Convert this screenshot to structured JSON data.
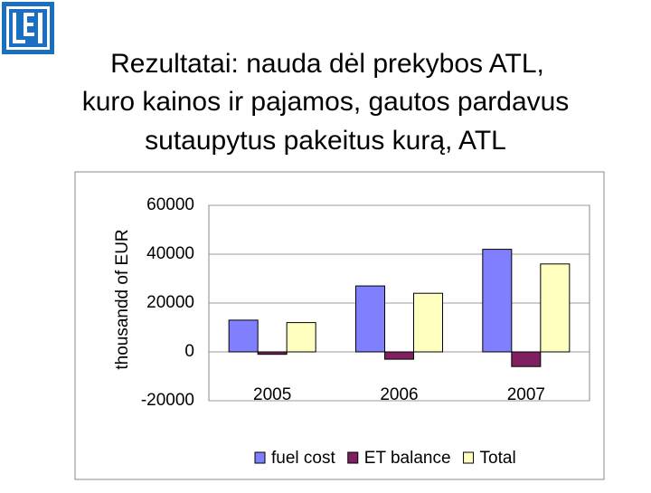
{
  "chart_data": {
    "type": "bar",
    "title": [
      "Rezultatai: nauda dėl prekybos ATL,",
      "kuro kainos ir pajamos, gautos pardavus",
      "sutaupytus pakeitus kurą,  ATL"
    ],
    "y_label": "thousandd of EUR",
    "categories": [
      "2005",
      "2006",
      "2007"
    ],
    "series": [
      {
        "name": "fuel cost",
        "color": "#8080ff",
        "values": [
          13000,
          27000,
          42000
        ]
      },
      {
        "name": "ET balance",
        "color": "#802060",
        "values": [
          -1000,
          -3000,
          -6000
        ]
      },
      {
        "name": "Total",
        "color": "#ffffc0",
        "values": [
          12000,
          24000,
          36000
        ]
      }
    ],
    "ylim": [
      -20000,
      60000
    ],
    "yticks": [
      -20000,
      0,
      20000,
      40000,
      60000
    ],
    "grid": true
  }
}
